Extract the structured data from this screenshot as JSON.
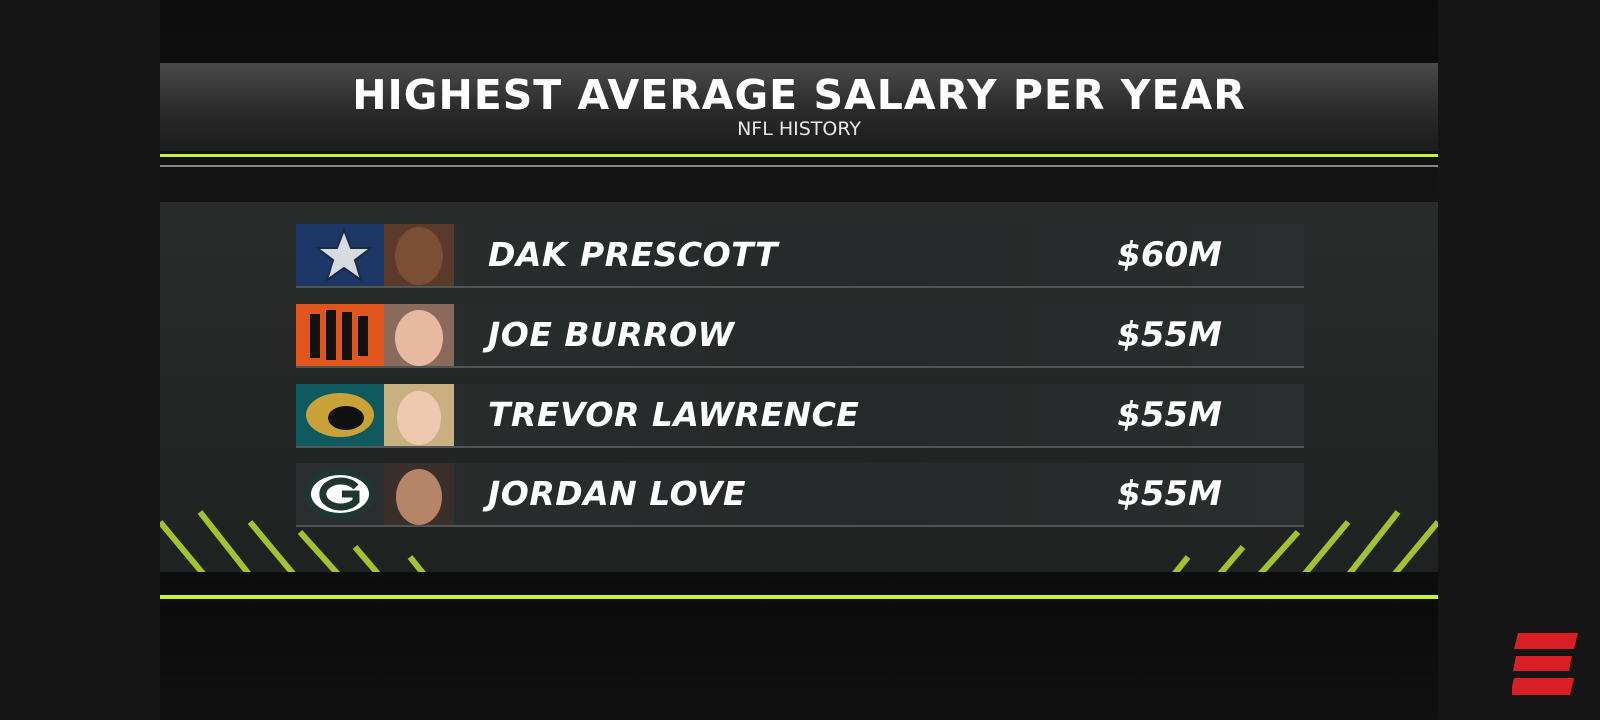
{
  "header": {
    "title": "HIGHEST AVERAGE SALARY PER YEAR",
    "subtitle": "NFL HISTORY"
  },
  "table": {
    "rows": [
      {
        "name": "DAK PRESCOTT",
        "salary": "$60M"
      },
      {
        "name": "JOE BURROW",
        "salary": "$55M"
      },
      {
        "name": "TREVOR LAWRENCE",
        "salary": "$55M"
      },
      {
        "name": "JORDAN LOVE",
        "salary": "$55M"
      }
    ]
  }
}
